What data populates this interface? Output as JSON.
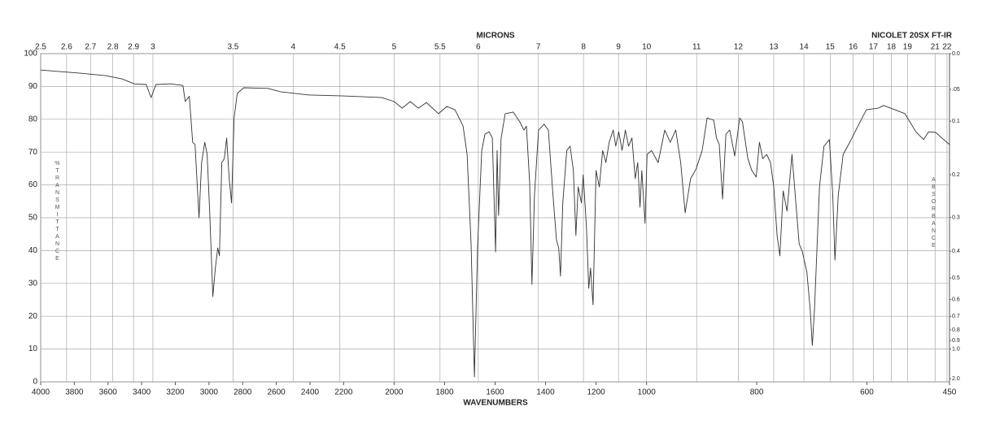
{
  "chart_data": {
    "type": "line",
    "instrument": "NICOLET 20SX FT-IR",
    "xlabel": "WAVENUMBERS",
    "x2label": "MICRONS",
    "ylabel": "%TRANSMITTANCE",
    "y2label": "ABSORBANCE",
    "xlim": [
      4000,
      450
    ],
    "xscale": {
      "type": "piecewise",
      "breaks": [
        4000,
        2200,
        1000,
        450
      ]
    },
    "xticks": [
      4000,
      3800,
      3600,
      3400,
      3200,
      3000,
      2800,
      2600,
      2400,
      2200,
      2000,
      1800,
      1600,
      1400,
      1200,
      1000,
      800,
      600,
      450
    ],
    "x2scale": "microns",
    "x2ticks": [
      2.5,
      2.6,
      2.7,
      2.8,
      2.9,
      3,
      3.5,
      4,
      4.5,
      5,
      5.5,
      6,
      7,
      8,
      9,
      10,
      11,
      12,
      13,
      14,
      15,
      16,
      17,
      18,
      19,
      21,
      22
    ],
    "ylim": [
      0,
      100
    ],
    "yticks": [
      0,
      10,
      20,
      30,
      40,
      50,
      60,
      70,
      80,
      90,
      100
    ],
    "y2scale": "absorbance",
    "y2ticks": [
      {
        "value": 0,
        "label": "0.0"
      },
      {
        "value": 0.05,
        "label": ".05"
      },
      {
        "value": 0.1,
        "label": "0.1"
      },
      0.2,
      0.3,
      0.4,
      0.5,
      0.6,
      0.7,
      0.8,
      0.9,
      {
        "value": 1,
        "label": "1.0"
      },
      {
        "value": 2,
        "label": "2.0"
      }
    ],
    "grid": true,
    "color": "#333333",
    "x": [
      4000,
      3759,
      3614,
      3517,
      3445,
      3373,
      3344,
      3315,
      3228,
      3155,
      3141,
      3117,
      3097,
      3083,
      3059,
      3044,
      3025,
      3011,
      2996,
      2977,
      2962,
      2948,
      2938,
      2924,
      2909,
      2895,
      2880,
      2866,
      2851,
      2832,
      2793,
      2649,
      2576,
      2407,
      2200,
      2049,
      2000,
      1968,
      1936,
      1904,
      1872,
      1824,
      1791,
      1759,
      1727,
      1711,
      1695,
      1682,
      1669,
      1653,
      1640,
      1624,
      1611,
      1598,
      1592,
      1586,
      1576,
      1560,
      1528,
      1502,
      1486,
      1476,
      1463,
      1454,
      1444,
      1428,
      1406,
      1389,
      1373,
      1357,
      1348,
      1341,
      1332,
      1316,
      1303,
      1290,
      1280,
      1271,
      1258,
      1251,
      1238,
      1229,
      1222,
      1212,
      1200,
      1187,
      1174,
      1161,
      1148,
      1132,
      1122,
      1110,
      1097,
      1084,
      1071,
      1058,
      1045,
      1035,
      1026,
      1019,
      1006,
      999,
      991,
      979,
      967,
      957,
      947,
      938,
      930,
      920,
      910,
      899,
      890,
      878,
      873,
      868,
      862,
      856,
      849,
      840,
      831,
      826,
      816,
      809,
      801,
      795,
      789,
      782,
      775,
      769,
      763,
      758,
      752,
      745,
      736,
      730,
      723,
      717,
      709,
      703,
      699,
      695,
      686,
      678,
      668,
      662,
      658,
      652,
      643,
      631,
      616,
      601,
      579,
      570,
      549,
      531,
      511,
      497,
      488,
      475,
      464,
      450
    ],
    "y": [
      95,
      94,
      93.3,
      92.3,
      90.8,
      90.6,
      86.6,
      90.6,
      90.8,
      90.3,
      85.4,
      87,
      73,
      72.3,
      50,
      66.8,
      73,
      69.3,
      52,
      26,
      34.7,
      40.8,
      38.4,
      66.8,
      68,
      74.3,
      61.9,
      54.5,
      80.4,
      87.9,
      89.6,
      89.4,
      88.4,
      87.4,
      87.1,
      86.6,
      85.4,
      83.4,
      85.4,
      83.4,
      85.1,
      81.7,
      83.9,
      82.9,
      78,
      69.3,
      42,
      1.5,
      42,
      70.5,
      75.5,
      76.2,
      74.3,
      39.6,
      70.5,
      50.7,
      74.3,
      81.7,
      82.2,
      79.2,
      76.7,
      77.9,
      60.6,
      29.7,
      56.9,
      76.7,
      78.5,
      76.7,
      59.4,
      43.3,
      40.8,
      32.2,
      54.5,
      70.5,
      71.8,
      64.4,
      44.6,
      59.4,
      54.5,
      63.1,
      47,
      28.5,
      34.7,
      23.5,
      64.4,
      59.4,
      70.5,
      66.8,
      73,
      76.7,
      71.8,
      76.2,
      70.5,
      76.7,
      71.8,
      74.3,
      61.9,
      66.8,
      53.2,
      64.4,
      48.3,
      69.3,
      70.5,
      66.8,
      76.7,
      73,
      76.7,
      66.8,
      51.5,
      61.9,
      64.9,
      70.5,
      80.4,
      79.7,
      74.3,
      72.3,
      55.7,
      75.5,
      76.7,
      68.8,
      80.4,
      79.2,
      68,
      64.4,
      62.4,
      73,
      68,
      69.3,
      66.8,
      59.4,
      44.6,
      38.4,
      58.2,
      52,
      69.3,
      56.9,
      42.1,
      39.6,
      33.4,
      22.3,
      11.1,
      22.3,
      59.4,
      71.8,
      73.8,
      56.9,
      37.1,
      56.9,
      69.3,
      73,
      78,
      82.9,
      83.4,
      84.2,
      82.9,
      81.7,
      76.2,
      73.8,
      76.2,
      76,
      74.3,
      72.3
    ]
  }
}
